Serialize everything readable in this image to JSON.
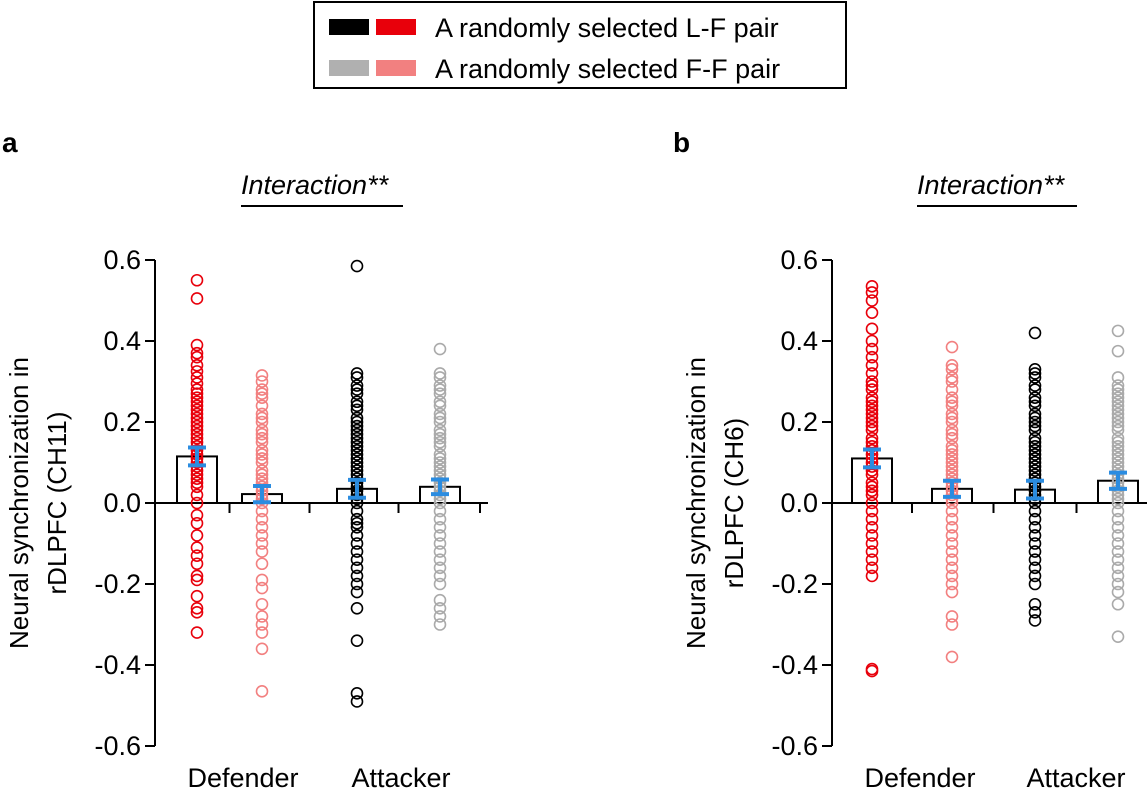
{
  "legend": {
    "items": [
      {
        "label": "A randomly selected L-F pair",
        "colors": [
          "#000000",
          "#e8000b"
        ]
      },
      {
        "label": "A randomly selected F-F pair",
        "colors": [
          "#b0b0b0",
          "#f28080"
        ]
      }
    ]
  },
  "colors": {
    "defender_lf": "#e8000b",
    "defender_ff": "#f28080",
    "attacker_lf": "#000000",
    "attacker_ff": "#aaaaaa",
    "error_bar": "#2b8ce0"
  },
  "chart_data": [
    {
      "type": "bar",
      "panel": "a",
      "annotation": "Interaction**",
      "ylabel_lines": [
        "Neural synchronization in",
        "rDLPFC (CH11)"
      ],
      "ylim": [
        -0.6,
        0.6
      ],
      "yticks": [
        "0.6",
        "0.4",
        "0.2",
        "0.0",
        "-0.2",
        "-0.4",
        "-0.6"
      ],
      "group_labels": [
        "Defender",
        "Attacker"
      ],
      "groups": [
        {
          "mean": 0.115,
          "err": 0.022,
          "points": [
            0.55,
            0.505,
            0.39,
            0.37,
            0.36,
            0.34,
            0.325,
            0.31,
            0.295,
            0.28,
            0.27,
            0.26,
            0.25,
            0.24,
            0.23,
            0.22,
            0.21,
            0.2,
            0.19,
            0.18,
            0.17,
            0.16,
            0.15,
            0.14,
            0.13,
            0.12,
            0.11,
            0.1,
            0.09,
            0.08,
            0.07,
            0.06,
            0.05,
            0.04,
            0.02,
            0.0,
            -0.03,
            -0.05,
            -0.08,
            -0.11,
            -0.13,
            -0.15,
            -0.18,
            -0.19,
            -0.23,
            -0.26,
            -0.27,
            -0.32
          ]
        },
        {
          "mean": 0.022,
          "err": 0.02,
          "points": [
            0.315,
            0.3,
            0.28,
            0.27,
            0.26,
            0.24,
            0.22,
            0.21,
            0.2,
            0.18,
            0.17,
            0.16,
            0.15,
            0.13,
            0.12,
            0.11,
            0.1,
            0.08,
            0.07,
            0.06,
            0.05,
            0.04,
            0.03,
            0.02,
            0.01,
            0.0,
            -0.02,
            -0.04,
            -0.06,
            -0.08,
            -0.1,
            -0.12,
            -0.15,
            -0.19,
            -0.21,
            -0.25,
            -0.28,
            -0.3,
            -0.32,
            -0.36,
            -0.465
          ]
        },
        {
          "mean": 0.035,
          "err": 0.022,
          "points": [
            0.585,
            0.32,
            0.31,
            0.29,
            0.28,
            0.27,
            0.25,
            0.24,
            0.23,
            0.21,
            0.2,
            0.19,
            0.18,
            0.17,
            0.16,
            0.15,
            0.14,
            0.13,
            0.12,
            0.11,
            0.1,
            0.09,
            0.08,
            0.07,
            0.06,
            0.05,
            0.04,
            0.03,
            0.02,
            0.01,
            0.0,
            -0.02,
            -0.04,
            -0.05,
            -0.06,
            -0.08,
            -0.1,
            -0.12,
            -0.14,
            -0.16,
            -0.18,
            -0.2,
            -0.22,
            -0.26,
            -0.34,
            -0.47,
            -0.49
          ]
        },
        {
          "mean": 0.04,
          "err": 0.018,
          "points": [
            0.38,
            0.32,
            0.31,
            0.29,
            0.28,
            0.27,
            0.25,
            0.24,
            0.22,
            0.21,
            0.2,
            0.18,
            0.17,
            0.16,
            0.15,
            0.14,
            0.12,
            0.11,
            0.1,
            0.09,
            0.08,
            0.07,
            0.06,
            0.05,
            0.04,
            0.03,
            0.02,
            0.01,
            0.0,
            -0.02,
            -0.04,
            -0.06,
            -0.08,
            -0.1,
            -0.12,
            -0.14,
            -0.16,
            -0.18,
            -0.2,
            -0.24,
            -0.26,
            -0.28,
            -0.3
          ]
        }
      ]
    },
    {
      "type": "bar",
      "panel": "b",
      "annotation": "Interaction**",
      "ylabel_lines": [
        "Neural synchronization in",
        "rDLPFC (CH6)"
      ],
      "ylim": [
        -0.6,
        0.6
      ],
      "yticks": [
        "0.6",
        "0.4",
        "0.2",
        "0.0",
        "-0.2",
        "-0.4",
        "-0.6"
      ],
      "group_labels": [
        "Defender",
        "Attacker"
      ],
      "groups": [
        {
          "mean": 0.11,
          "err": 0.022,
          "points": [
            0.535,
            0.52,
            0.5,
            0.47,
            0.43,
            0.4,
            0.38,
            0.36,
            0.34,
            0.32,
            0.3,
            0.29,
            0.28,
            0.26,
            0.25,
            0.24,
            0.23,
            0.22,
            0.21,
            0.2,
            0.19,
            0.18,
            0.16,
            0.15,
            0.14,
            0.13,
            0.12,
            0.11,
            0.1,
            0.09,
            0.08,
            0.07,
            0.05,
            0.04,
            0.03,
            0.02,
            0.0,
            -0.02,
            -0.04,
            -0.06,
            -0.08,
            -0.1,
            -0.12,
            -0.14,
            -0.16,
            -0.18,
            -0.41,
            -0.415
          ]
        },
        {
          "mean": 0.035,
          "err": 0.02,
          "points": [
            0.385,
            0.34,
            0.33,
            0.31,
            0.3,
            0.28,
            0.26,
            0.25,
            0.24,
            0.22,
            0.21,
            0.2,
            0.18,
            0.17,
            0.16,
            0.14,
            0.13,
            0.12,
            0.11,
            0.1,
            0.09,
            0.08,
            0.07,
            0.06,
            0.05,
            0.04,
            0.03,
            0.02,
            0.01,
            0.0,
            -0.02,
            -0.04,
            -0.06,
            -0.08,
            -0.1,
            -0.12,
            -0.14,
            -0.16,
            -0.18,
            -0.2,
            -0.22,
            -0.28,
            -0.3,
            -0.38
          ]
        },
        {
          "mean": 0.033,
          "err": 0.022,
          "points": [
            0.42,
            0.33,
            0.32,
            0.31,
            0.29,
            0.28,
            0.26,
            0.25,
            0.24,
            0.22,
            0.21,
            0.2,
            0.19,
            0.18,
            0.16,
            0.15,
            0.14,
            0.13,
            0.12,
            0.11,
            0.1,
            0.09,
            0.08,
            0.07,
            0.06,
            0.05,
            0.04,
            0.03,
            0.02,
            0.01,
            0.0,
            -0.02,
            -0.04,
            -0.06,
            -0.08,
            -0.1,
            -0.12,
            -0.14,
            -0.16,
            -0.18,
            -0.2,
            -0.25,
            -0.27,
            -0.29
          ]
        },
        {
          "mean": 0.055,
          "err": 0.02,
          "points": [
            0.425,
            0.375,
            0.31,
            0.29,
            0.28,
            0.27,
            0.26,
            0.25,
            0.24,
            0.23,
            0.22,
            0.21,
            0.2,
            0.19,
            0.18,
            0.16,
            0.15,
            0.14,
            0.13,
            0.12,
            0.11,
            0.1,
            0.09,
            0.08,
            0.07,
            0.06,
            0.05,
            0.04,
            0.03,
            0.02,
            0.01,
            0.0,
            -0.02,
            -0.04,
            -0.06,
            -0.08,
            -0.1,
            -0.12,
            -0.14,
            -0.16,
            -0.18,
            -0.2,
            -0.22,
            -0.25,
            -0.33
          ]
        }
      ]
    }
  ]
}
